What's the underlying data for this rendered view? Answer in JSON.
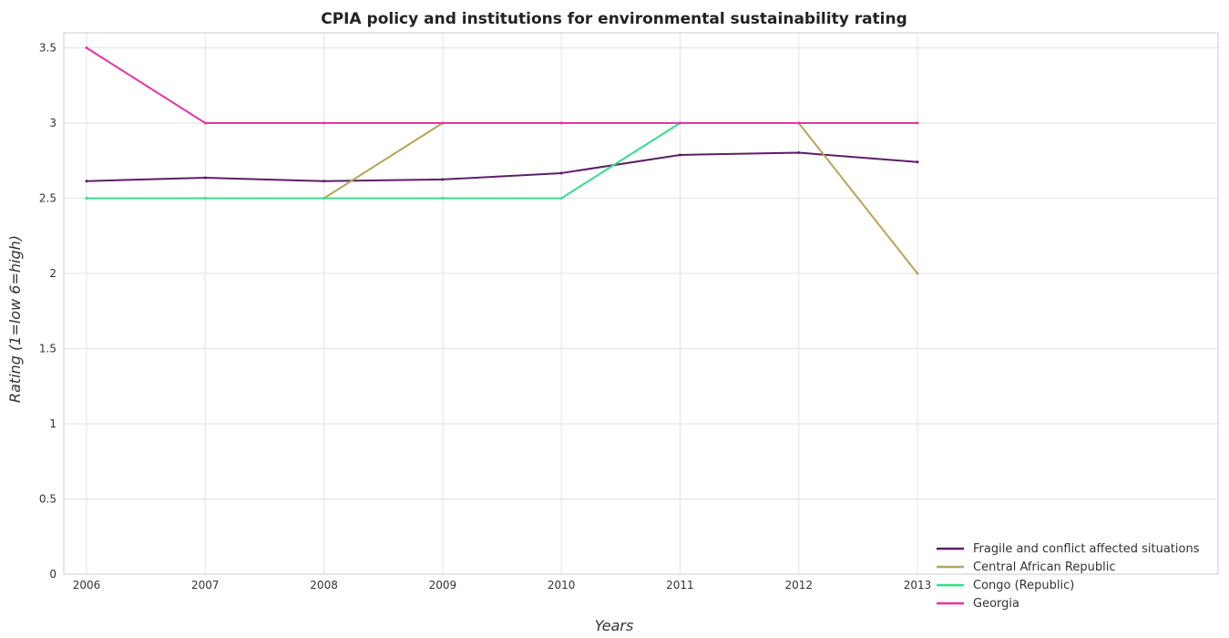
{
  "chart_data": {
    "type": "line",
    "title": "CPIA policy and institutions for environmental sustainability rating",
    "xlabel": "Years",
    "ylabel": "Rating (1=low 6=high)",
    "x": [
      "2006",
      "2007",
      "2008",
      "2009",
      "2010",
      "2011",
      "2012",
      "2013"
    ],
    "ylim": [
      0,
      3.6
    ],
    "yticks": [
      "0",
      "0.5",
      "1",
      "1.5",
      "2",
      "2.5",
      "3",
      "3.5"
    ],
    "ytick_values": [
      0,
      0.5,
      1,
      1.5,
      2,
      2.5,
      3,
      3.5
    ],
    "grid": true,
    "legend_position": "bottom-right",
    "series": [
      {
        "name": "Fragile and conflict affected situations",
        "color": "#5a1f66",
        "values": [
          2.614,
          2.636,
          2.614,
          2.625,
          2.667,
          2.788,
          2.803,
          2.741
        ]
      },
      {
        "name": "Central African Republic",
        "color": "#b5a55a",
        "values": [
          2.5,
          2.5,
          2.5,
          3.0,
          3.0,
          3.0,
          3.0,
          2.0
        ]
      },
      {
        "name": "Congo (Republic)",
        "color": "#33e08a",
        "values": [
          2.5,
          2.5,
          2.5,
          2.5,
          2.5,
          3.0,
          3.0,
          3.0
        ]
      },
      {
        "name": "Georgia",
        "color": "#e8359e",
        "values": [
          3.5,
          3.0,
          3.0,
          3.0,
          3.0,
          3.0,
          3.0,
          3.0
        ]
      }
    ]
  }
}
